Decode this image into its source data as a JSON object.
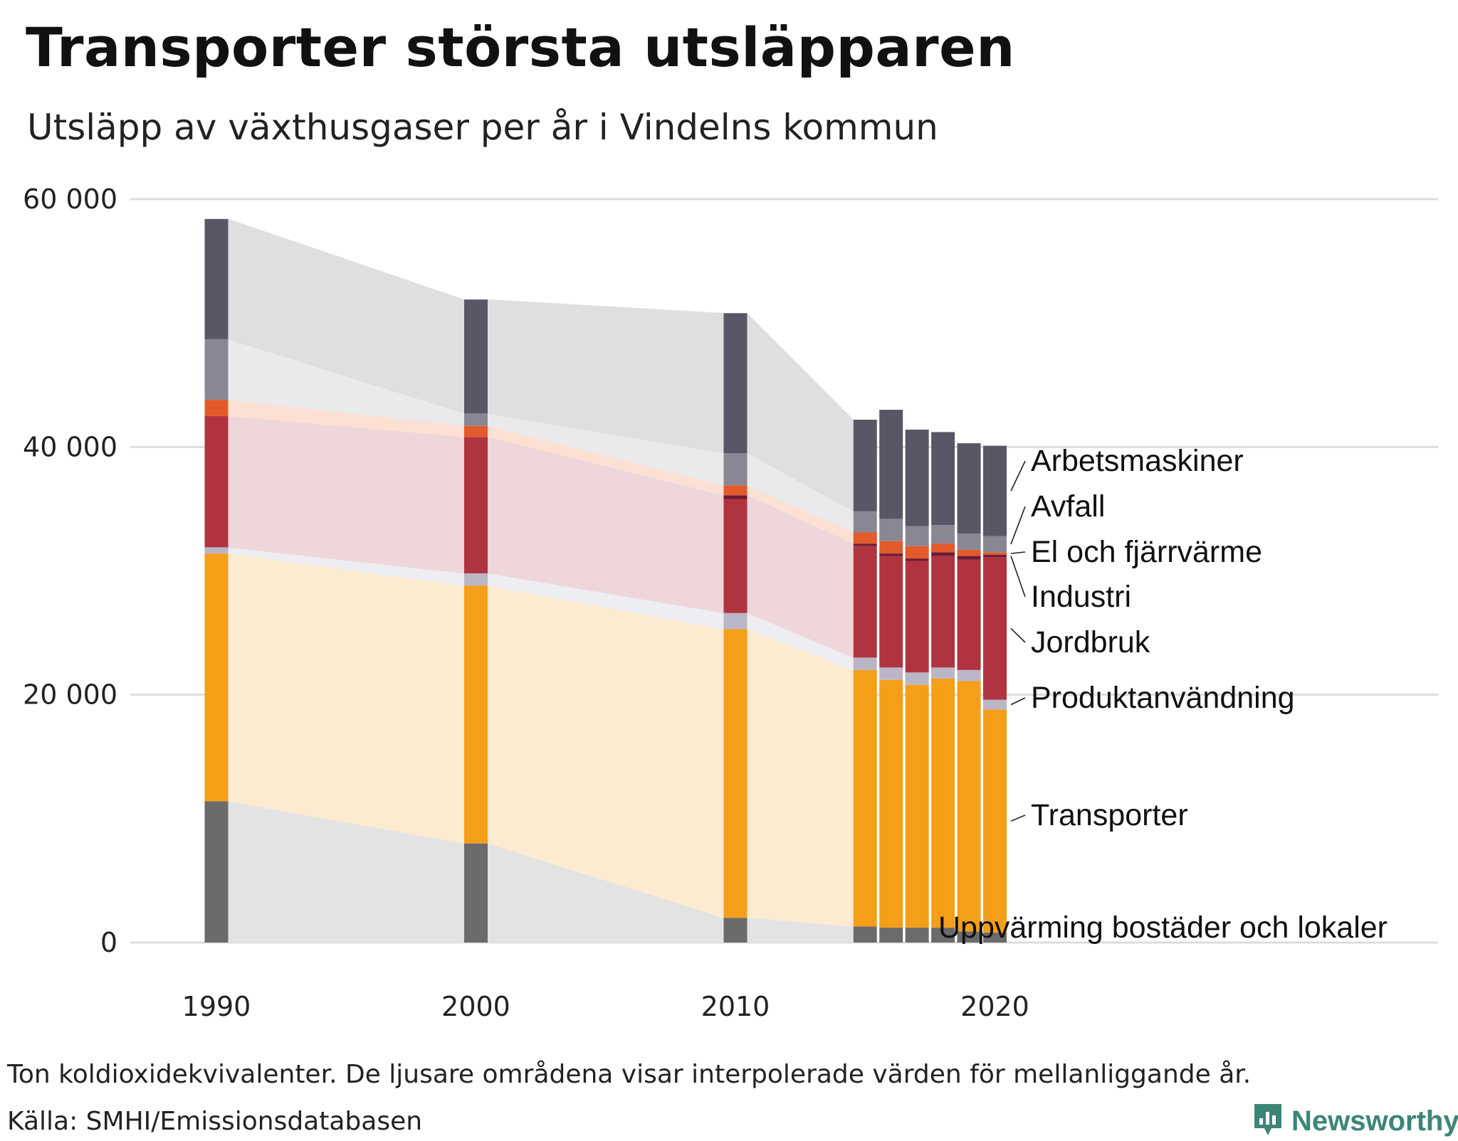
{
  "header": {
    "title": "Transporter största utsläpparen",
    "subtitle": "Utsläpp av växthusgaser per år i Vindelns kommun"
  },
  "footer": {
    "note": "Ton koldioxidekvivalenter. De ljusare områdena visar interpolerade värden för mellanliggande år.",
    "source": "Källa: SMHI/Emissionsdatabasen",
    "brand": "Newsworthy"
  },
  "chart_data": {
    "type": "bar",
    "stacked": true,
    "title": "Transporter största utsläpparen",
    "subtitle": "Utsläpp av växthusgaser per år i Vindelns kommun",
    "xlabel": "",
    "ylabel": "",
    "ylim": [
      0,
      60000
    ],
    "yticks": [
      0,
      20000,
      40000,
      60000
    ],
    "ytick_labels": [
      "0",
      "20 000",
      "40 000",
      "60 000"
    ],
    "xticks": [
      1990,
      2000,
      2010,
      2020
    ],
    "years": [
      1990,
      2000,
      2010,
      2015,
      2016,
      2017,
      2018,
      2019,
      2020
    ],
    "interpolated_segments": [
      [
        1990,
        2000
      ],
      [
        2000,
        2010
      ],
      [
        2010,
        2015
      ]
    ],
    "series": [
      {
        "name": "Uppvärming bostäder och lokaler",
        "color": "#6b6b6b",
        "area_color": "#e3e3e4",
        "values": [
          11400,
          8000,
          2000,
          1300,
          1200,
          1200,
          1200,
          900,
          800
        ]
      },
      {
        "name": "Transporter",
        "color": "#f59e18",
        "area_color": "#fcebd1",
        "values": [
          20000,
          20800,
          23300,
          20700,
          20000,
          19600,
          20100,
          20200,
          18000
        ]
      },
      {
        "name": "Produktanvändning",
        "color": "#bab6c6",
        "area_color": "#eeedf2",
        "values": [
          500,
          1000,
          1300,
          1000,
          1000,
          1000,
          900,
          900,
          800
        ]
      },
      {
        "name": "Jordbruk",
        "color": "#b0343f",
        "area_color": "#efd6da",
        "values": [
          10600,
          11000,
          9200,
          9000,
          9000,
          9000,
          9000,
          8900,
          11500
        ]
      },
      {
        "name": "Industri",
        "color": "#6e1a36",
        "area_color": "#efd6da",
        "values": [
          0,
          0,
          300,
          200,
          200,
          200,
          300,
          300,
          200
        ]
      },
      {
        "name": "El och fjärrvärme",
        "color": "#e35a2b",
        "area_color": "#fbe0d3",
        "values": [
          1300,
          900,
          800,
          900,
          1000,
          1000,
          700,
          500,
          200
        ]
      },
      {
        "name": "Avfall",
        "color": "#8a8795",
        "area_color": "#eaeaec",
        "values": [
          4900,
          1000,
          2600,
          1700,
          1800,
          1600,
          1500,
          1300,
          1300
        ]
      },
      {
        "name": "Arbetsmaskiner",
        "color": "#585766",
        "area_color": "#dfdfe1",
        "values": [
          9700,
          9200,
          11300,
          7400,
          8800,
          7800,
          7500,
          7300,
          7300
        ]
      }
    ],
    "legend_position": "right-of-bars (direct labels)"
  }
}
